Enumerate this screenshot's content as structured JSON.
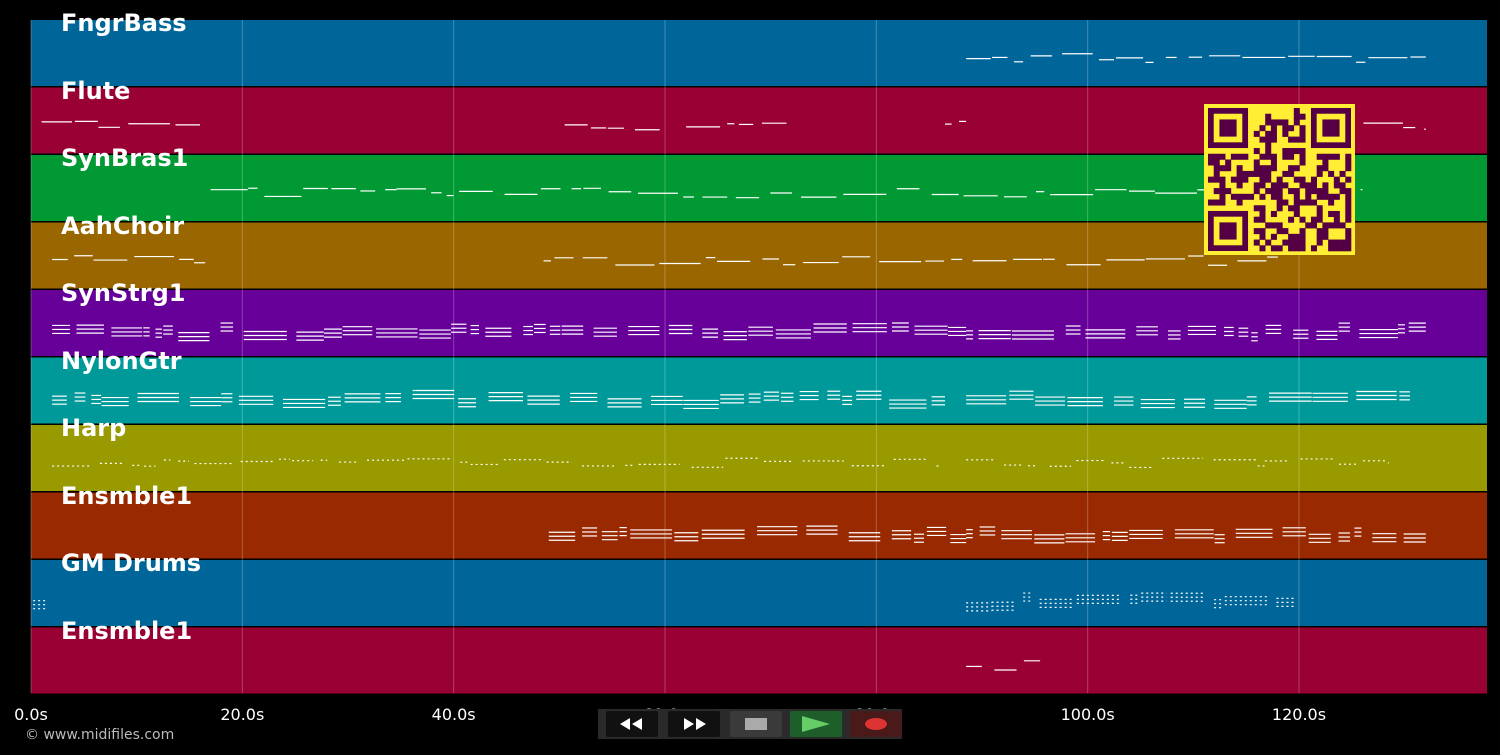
{
  "copyright": "© www.midifiles.com",
  "timeline": {
    "ticks": [
      "0.0s",
      "20.0s",
      "40.0s",
      "60.0s",
      "80.0s",
      "100.0s",
      "120.0s"
    ],
    "max_seconds": 138
  },
  "tracks": [
    {
      "name": "FngrBass",
      "color": "#006699"
    },
    {
      "name": "Flute",
      "color": "#990033"
    },
    {
      "name": "SynBras1",
      "color": "#009933"
    },
    {
      "name": "AahChoir",
      "color": "#996600"
    },
    {
      "name": "SynStrg1",
      "color": "#660099"
    },
    {
      "name": "NylonGtr",
      "color": "#009999"
    },
    {
      "name": "Harp",
      "color": "#999900"
    },
    {
      "name": "Ensmble1",
      "color": "#992900"
    },
    {
      "name": "GM Drums",
      "color": "#006699"
    },
    {
      "name": "Ensmble1",
      "color": "#990033"
    }
  ],
  "transport": {
    "buttons": [
      {
        "name": "rewind-button",
        "icon": "rewind-icon"
      },
      {
        "name": "fast-forward-button",
        "icon": "fast-forward-icon"
      },
      {
        "name": "stop-button",
        "icon": "stop-icon"
      },
      {
        "name": "play-button",
        "icon": "play-icon"
      },
      {
        "name": "record-button",
        "icon": "record-icon"
      }
    ]
  },
  "qr_code": {
    "icon": "qr-code-icon",
    "fg": "#ffee33",
    "bg": "#550044"
  }
}
